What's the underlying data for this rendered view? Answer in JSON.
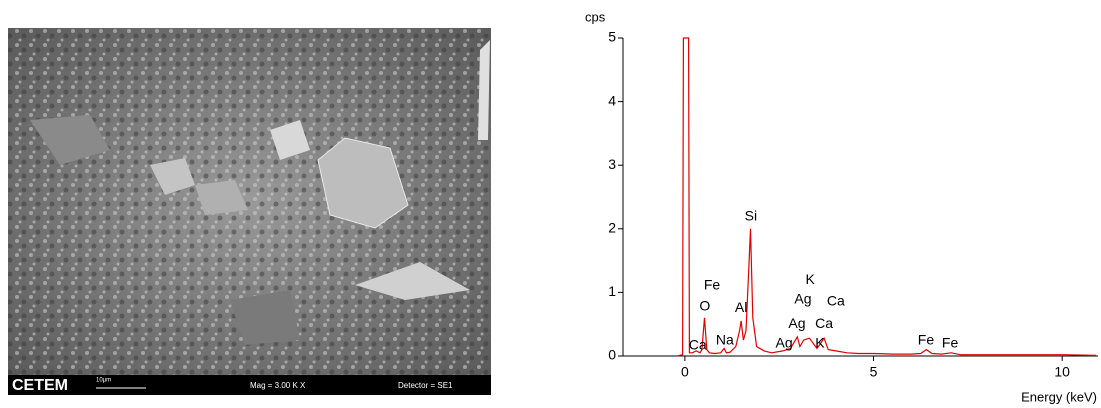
{
  "sem": {
    "logo": "CETEM",
    "scale": "10µm",
    "magnification": "Mag =  3.00 K X",
    "detector": "Detector = SE1"
  },
  "chart_data": {
    "type": "line",
    "y_label": "cps",
    "x_label": "Energy (keV)",
    "xlim": [
      -1.64,
      10.95
    ],
    "ylim": [
      0,
      5
    ],
    "xticks": [
      0,
      5,
      10
    ],
    "yticks": [
      0,
      1,
      2,
      3,
      4,
      5
    ],
    "series": [
      {
        "color": "#e00000",
        "x": [
          -0.2,
          -0.06,
          -0.04,
          0.1,
          0.12,
          0.2,
          0.3,
          0.4,
          0.45,
          0.52,
          0.58,
          0.65,
          0.8,
          0.95,
          1.04,
          1.1,
          1.2,
          1.35,
          1.45,
          1.49,
          1.55,
          1.62,
          1.68,
          1.74,
          1.8,
          1.9,
          2.1,
          2.3,
          2.6,
          2.8,
          2.98,
          3.05,
          3.15,
          3.3,
          3.5,
          3.6,
          3.69,
          3.8,
          4.0,
          4.3,
          4.6,
          5.0,
          5.5,
          6.0,
          6.25,
          6.4,
          6.55,
          6.8,
          7.06,
          7.3,
          8,
          9,
          10,
          10.9
        ],
        "values": [
          0,
          0.02,
          5,
          5,
          0.05,
          0.05,
          0.08,
          0.05,
          0.1,
          0.6,
          0.1,
          0.05,
          0.04,
          0.05,
          0.12,
          0.05,
          0.06,
          0.15,
          0.4,
          0.55,
          0.25,
          0.4,
          1.2,
          2.0,
          0.6,
          0.15,
          0.08,
          0.05,
          0.08,
          0.12,
          0.3,
          0.15,
          0.25,
          0.28,
          0.12,
          0.2,
          0.28,
          0.1,
          0.08,
          0.05,
          0.04,
          0.04,
          0.03,
          0.03,
          0.04,
          0.1,
          0.04,
          0.03,
          0.05,
          0.02,
          0.02,
          0.02,
          0.02,
          0.01
        ]
      }
    ],
    "annotations": [
      {
        "label": "Ca",
        "x": 0.34,
        "y": 0.16
      },
      {
        "label": "Fe",
        "x": 0.72,
        "y": 1.1
      },
      {
        "label": "O",
        "x": 0.53,
        "y": 0.77
      },
      {
        "label": "Na",
        "x": 1.06,
        "y": 0.24
      },
      {
        "label": "Al",
        "x": 1.49,
        "y": 0.75
      },
      {
        "label": "Si",
        "x": 1.75,
        "y": 2.19
      },
      {
        "label": "K",
        "x": 3.32,
        "y": 1.19
      },
      {
        "label": "Ag",
        "x": 3.13,
        "y": 0.88
      },
      {
        "label": "Ca",
        "x": 4.0,
        "y": 0.85
      },
      {
        "label": "Ag",
        "x": 2.97,
        "y": 0.5
      },
      {
        "label": "Ca",
        "x": 3.69,
        "y": 0.5
      },
      {
        "label": "Ag",
        "x": 2.63,
        "y": 0.19
      },
      {
        "label": "K",
        "x": 3.58,
        "y": 0.19
      },
      {
        "label": "Fe",
        "x": 6.39,
        "y": 0.24
      },
      {
        "label": "Fe",
        "x": 7.03,
        "y": 0.19
      }
    ]
  }
}
